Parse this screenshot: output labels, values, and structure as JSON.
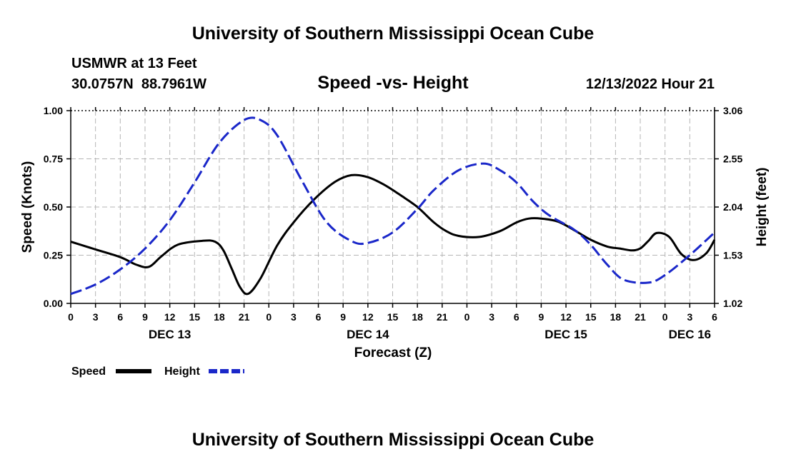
{
  "page": {
    "title": "University of Southern Mississippi Ocean Cube",
    "footer_title": "University of Southern Mississippi Ocean Cube",
    "station": "USMWR at 13 Feet",
    "location": "30.0757N  88.7961W",
    "date_label": "12/13/2022 Hour 21"
  },
  "chart_data": {
    "type": "line",
    "title": "Speed -vs- Height",
    "xlabel": "Forecast (Z)",
    "ylabel": "Speed (Knots)",
    "y2label": "Height (feet)",
    "x_range": [
      0,
      78
    ],
    "x_ticks": [
      0,
      3,
      6,
      9,
      12,
      15,
      18,
      21,
      24,
      27,
      30,
      33,
      36,
      39,
      42,
      45,
      48,
      51,
      54,
      57,
      60,
      63,
      66,
      69,
      72,
      75,
      78
    ],
    "x_tick_labels": [
      "0",
      "3",
      "6",
      "9",
      "12",
      "15",
      "18",
      "21",
      "0",
      "3",
      "6",
      "9",
      "12",
      "15",
      "18",
      "21",
      "0",
      "3",
      "6",
      "9",
      "12",
      "15",
      "18",
      "21",
      "0",
      "3",
      "6"
    ],
    "day_labels": [
      {
        "x": 12,
        "label": "DEC 13"
      },
      {
        "x": 36,
        "label": "DEC 14"
      },
      {
        "x": 60,
        "label": "DEC 15"
      },
      {
        "x": 75,
        "label": "DEC 16"
      }
    ],
    "ylim": [
      0,
      1.0
    ],
    "y_ticks": [
      0,
      0.25,
      0.5,
      0.75,
      1.0
    ],
    "y_tick_labels": [
      "0.00",
      "0.25",
      "0.50",
      "0.75",
      "1.00"
    ],
    "y2lim": [
      1.02,
      3.06
    ],
    "y2_ticks": [
      1.02,
      1.53,
      2.04,
      2.55,
      3.06
    ],
    "y2_tick_labels": [
      "1.02",
      "1.53",
      "2.04",
      "2.55",
      "3.06"
    ],
    "grid": true,
    "series": [
      {
        "name": "Speed",
        "axis": "left",
        "color": "#000000",
        "style": "solid",
        "x": [
          0,
          3,
          6,
          8,
          9.5,
          11,
          13,
          16,
          17.5,
          18.5,
          19.5,
          20.5,
          21.5,
          23,
          25,
          27,
          29.5,
          32,
          34,
          36,
          38,
          40,
          42,
          44,
          45.5,
          47,
          49.5,
          52,
          54,
          55.5,
          57,
          59,
          61,
          63,
          65,
          66.5,
          68,
          69,
          70,
          71,
          72.5,
          74,
          75.5,
          77,
          78
        ],
        "values": [
          0.32,
          0.28,
          0.24,
          0.2,
          0.19,
          0.245,
          0.305,
          0.325,
          0.32,
          0.275,
          0.18,
          0.085,
          0.05,
          0.13,
          0.3,
          0.42,
          0.54,
          0.63,
          0.665,
          0.655,
          0.615,
          0.56,
          0.5,
          0.42,
          0.375,
          0.35,
          0.345,
          0.375,
          0.42,
          0.44,
          0.44,
          0.425,
          0.38,
          0.33,
          0.295,
          0.285,
          0.275,
          0.285,
          0.325,
          0.365,
          0.345,
          0.255,
          0.225,
          0.26,
          0.33
        ]
      },
      {
        "name": "Height",
        "axis": "right",
        "color": "#1a27c9",
        "style": "dashed",
        "x": [
          0,
          3,
          6,
          9,
          12,
          15,
          18,
          21,
          23,
          25,
          28,
          31,
          34,
          36,
          39,
          42,
          44,
          47,
          50,
          52,
          54,
          56,
          58,
          61,
          63,
          65,
          67,
          70,
          72,
          75,
          78
        ],
        "values": [
          1.12,
          1.22,
          1.38,
          1.6,
          1.9,
          2.3,
          2.72,
          2.96,
          2.96,
          2.8,
          2.32,
          1.88,
          1.68,
          1.66,
          1.77,
          2.02,
          2.22,
          2.43,
          2.5,
          2.43,
          2.3,
          2.1,
          1.95,
          1.8,
          1.64,
          1.43,
          1.27,
          1.24,
          1.32,
          1.53,
          1.77
        ]
      }
    ],
    "legend": {
      "position": "bottom-left",
      "entries": [
        {
          "label": "Speed",
          "color": "#000000"
        },
        {
          "label": "Height",
          "color": "#1a27c9"
        }
      ]
    }
  }
}
